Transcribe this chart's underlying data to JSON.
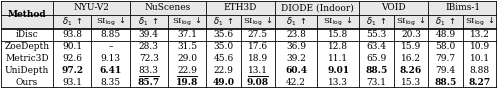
{
  "methods": [
    "iDisc",
    "ZoeDepth",
    "Metric3D",
    "UniDepth",
    "Ours"
  ],
  "datasets": [
    "NYU-V2",
    "NuScenes",
    "ETH3D",
    "DIODE (Indoor)",
    "VOID",
    "IBims-1"
  ],
  "data": {
    "NYU-V2": [
      [
        "93.8",
        "8.85"
      ],
      [
        "90.1",
        "–"
      ],
      [
        "92.6",
        "9.13"
      ],
      [
        "97.2",
        "6.41"
      ],
      [
        "93.1",
        "8.35"
      ]
    ],
    "NuScenes": [
      [
        "39.4",
        "37.1"
      ],
      [
        "28.3",
        "31.5"
      ],
      [
        "72.3",
        "29.0"
      ],
      [
        "83.3",
        "22.9"
      ],
      [
        "85.7",
        "19.8"
      ]
    ],
    "ETH3D": [
      [
        "35.6",
        "27.5"
      ],
      [
        "35.0",
        "17.6"
      ],
      [
        "45.6",
        "18.9"
      ],
      [
        "22.9",
        "13.1"
      ],
      [
        "49.0",
        "9.08"
      ]
    ],
    "DIODE (Indoor)": [
      [
        "23.8",
        "15.8"
      ],
      [
        "36.9",
        "12.8"
      ],
      [
        "39.2",
        "11.1"
      ],
      [
        "60.4",
        "9.01"
      ],
      [
        "42.2",
        "13.3"
      ]
    ],
    "VOID": [
      [
        "55.3",
        "20.3"
      ],
      [
        "63.4",
        "15.9"
      ],
      [
        "65.9",
        "16.2"
      ],
      [
        "88.5",
        "8.26"
      ],
      [
        "73.1",
        "15.3"
      ]
    ],
    "IBims-1": [
      [
        "48.9",
        "13.2"
      ],
      [
        "58.0",
        "10.9"
      ],
      [
        "79.7",
        "10.1"
      ],
      [
        "79.4",
        "8.88"
      ],
      [
        "88.5",
        "8.27"
      ]
    ]
  },
  "bold": {
    "NYU-V2": [
      [
        false,
        false
      ],
      [
        false,
        false
      ],
      [
        false,
        false
      ],
      [
        true,
        true
      ],
      [
        false,
        false
      ]
    ],
    "NuScenes": [
      [
        false,
        false
      ],
      [
        false,
        false
      ],
      [
        false,
        false
      ],
      [
        false,
        false
      ],
      [
        true,
        true
      ]
    ],
    "ETH3D": [
      [
        false,
        false
      ],
      [
        false,
        false
      ],
      [
        false,
        false
      ],
      [
        false,
        false
      ],
      [
        true,
        true
      ]
    ],
    "DIODE (Indoor)": [
      [
        false,
        false
      ],
      [
        false,
        false
      ],
      [
        false,
        false
      ],
      [
        true,
        true
      ],
      [
        false,
        false
      ]
    ],
    "VOID": [
      [
        false,
        false
      ],
      [
        false,
        false
      ],
      [
        false,
        false
      ],
      [
        true,
        true
      ],
      [
        false,
        false
      ]
    ],
    "IBims-1": [
      [
        false,
        false
      ],
      [
        false,
        false
      ],
      [
        false,
        false
      ],
      [
        false,
        false
      ],
      [
        true,
        true
      ]
    ]
  },
  "underline": {
    "NYU-V2": [
      [
        false,
        false
      ],
      [
        false,
        false
      ],
      [
        false,
        false
      ],
      [
        false,
        false
      ],
      [
        false,
        true
      ]
    ],
    "NuScenes": [
      [
        false,
        false
      ],
      [
        false,
        false
      ],
      [
        false,
        false
      ],
      [
        true,
        true
      ],
      [
        false,
        false
      ]
    ],
    "ETH3D": [
      [
        false,
        false
      ],
      [
        false,
        false
      ],
      [
        false,
        false
      ],
      [
        false,
        true
      ],
      [
        false,
        false
      ]
    ],
    "DIODE (Indoor)": [
      [
        false,
        false
      ],
      [
        false,
        false
      ],
      [
        false,
        false
      ],
      [
        false,
        false
      ],
      [
        true,
        false
      ]
    ],
    "VOID": [
      [
        false,
        false
      ],
      [
        false,
        false
      ],
      [
        false,
        false
      ],
      [
        false,
        false
      ],
      [
        true,
        true
      ]
    ],
    "IBims-1": [
      [
        false,
        false
      ],
      [
        false,
        false
      ],
      [
        false,
        false
      ],
      [
        false,
        false
      ],
      [
        false,
        false
      ]
    ]
  },
  "background_color": "#ffffff",
  "font_size": 6.5,
  "figsize": [
    6.4,
    1.13
  ]
}
